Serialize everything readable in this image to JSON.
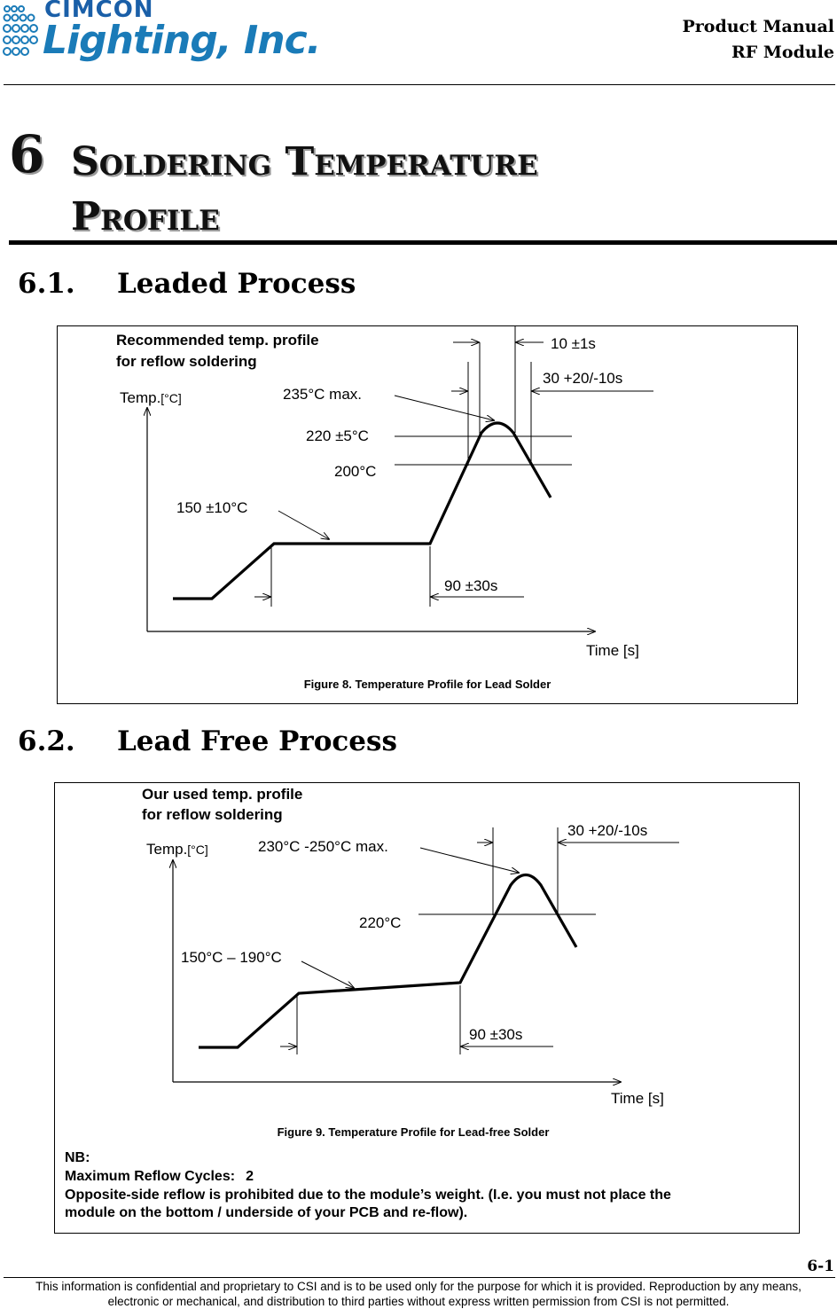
{
  "header": {
    "logo_top": "CIMCON",
    "logo_bottom": "Lighting, Inc.",
    "title_line1": "Product Manual",
    "title_line2": "RF Module"
  },
  "chapter": {
    "number": "6",
    "title_line1": "Soldering Temperature",
    "title_line2": "Profile"
  },
  "section1": {
    "number": "6.1.",
    "title": "Leaded Process",
    "figure": {
      "heading_line1": "Recommended temp. profile",
      "heading_line2": "for reflow soldering",
      "y_axis": "Temp.",
      "y_unit": "[°C]",
      "x_axis": "Time [s]",
      "peak_label": "235°C max.",
      "upper_label": "220 ±5°C",
      "lower_label": "200°C",
      "soak_label": "150 ±10°C",
      "time_peak_label": "10 ±1s",
      "time_above_label": "30 +20/-10s",
      "time_soak_label": "90 ±30s",
      "caption": "Figure 8.  Temperature Profile for Lead Solder"
    }
  },
  "section2": {
    "number": "6.2.",
    "title": "Lead Free Process",
    "figure": {
      "heading_line1": "Our used temp. profile",
      "heading_line2": "for reflow soldering",
      "y_axis": "Temp.",
      "y_unit": "[°C]",
      "x_axis": "Time [s]",
      "peak_label": "230°C -250°C max.",
      "upper_label": "220°C",
      "soak_label": "150°C – 190°C",
      "time_above_label": "30 +20/-10s",
      "time_soak_label": "90 ±30s",
      "caption": "Figure 9.  Temperature Profile for Lead-free Solder",
      "nb_title": "NB:",
      "nb_cycles_label": "Maximum Reflow Cycles:",
      "nb_cycles_value": "2",
      "nb_line1": "Opposite-side reflow is prohibited due to the module’s weight. (I.e. you must not place the",
      "nb_line2": "module on the bottom / underside of your PCB and re-flow)."
    }
  },
  "page_number": "6-1",
  "footer": {
    "line1": "This information is confidential and proprietary to CSI and is to be used only for the purpose for which it is provided. Reproduction by any means,",
    "line2": "electronic or mechanical, and distribution to third parties without express written permission from CSI is not permitted."
  },
  "colors": {
    "logo_dark": "#1a5fa8",
    "logo_light": "#1a7bb8",
    "rule": "#000000"
  }
}
